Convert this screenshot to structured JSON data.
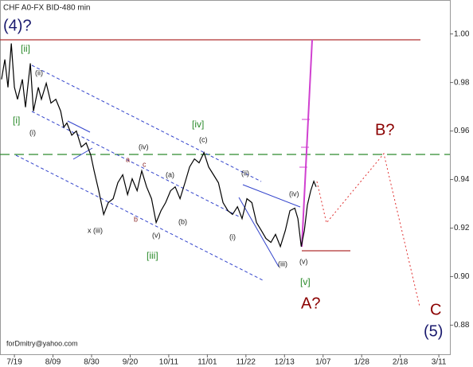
{
  "chart_data": {
    "type": "line",
    "title": "CHF A0-FX BID-480 min",
    "footer": "forDmitry@yahoo.com",
    "annotations": [
      "(4)?",
      "[ii]",
      "(ii)",
      "[i]",
      "(i)",
      "(iv)",
      "a",
      "c",
      "(a)",
      "b",
      "x (iii)",
      "(v)",
      "(b)",
      "[iii]",
      "[iv]",
      "(c)",
      "(ii)",
      "(iv)",
      "(i)",
      "(iii)",
      "(v)",
      "[v]",
      "A?",
      "B?",
      "C",
      "(5)"
    ],
    "x": [
      -5.0,
      -3.7,
      -2.5,
      -1.2,
      0,
      1.2,
      3.1,
      4.3,
      6.2,
      7.4,
      9.3,
      10.5,
      12.4,
      14.2,
      16.1,
      18.0,
      19.2,
      20.4,
      22.3,
      24.1,
      26.0,
      27.9,
      29.7,
      31.0,
      32.8,
      34.7,
      36.5,
      38.4,
      40.2,
      42.1,
      44.0,
      45.8,
      47.7,
      49.5,
      51.4,
      53.3,
      55.1,
      57.0,
      58.8,
      60.7,
      62.5,
      64.4,
      66.3,
      68.1,
      70.0,
      71.8,
      73.7,
      75.5,
      77.4,
      79.3,
      81.1,
      83.0,
      84.8,
      86.7,
      88.5,
      90.4,
      92.3,
      94.1,
      96.0,
      97.8,
      99.7,
      101.5,
      103.4,
      105.3,
      107.1,
      109.0,
      110.2,
      111.5,
      112.7,
      113.9,
      115.2,
      116.4,
      117.3
    ],
    "series": [
      {
        "name": "CHF A0-FX",
        "color": "#000000",
        "values": [
          0.9813,
          0.9895,
          0.978,
          0.9961,
          0.978,
          0.9731,
          0.9813,
          0.9698,
          0.9879,
          0.9682,
          0.978,
          0.9731,
          0.9797,
          0.9715,
          0.9731,
          0.9682,
          0.9616,
          0.9633,
          0.9583,
          0.96,
          0.9534,
          0.9551,
          0.9501,
          0.9436,
          0.9354,
          0.9256,
          0.9305,
          0.9321,
          0.9387,
          0.942,
          0.9338,
          0.9403,
          0.9354,
          0.9436,
          0.937,
          0.9321,
          0.9223,
          0.9272,
          0.9305,
          0.9354,
          0.937,
          0.9321,
          0.9387,
          0.9452,
          0.9485,
          0.9469,
          0.9511,
          0.9452,
          0.942,
          0.9387,
          0.9305,
          0.9272,
          0.9256,
          0.9288,
          0.9239,
          0.9321,
          0.9305,
          0.9223,
          0.919,
          0.9157,
          0.9141,
          0.9174,
          0.9124,
          0.919,
          0.9272,
          0.9282,
          0.9239,
          0.9124,
          0.919,
          0.9295,
          0.9354,
          0.9393,
          0.937
        ]
      }
    ],
    "xlim": [
      -5.6,
      169.3
    ],
    "xticks": [
      {
        "value": 0,
        "label": "7/19"
      },
      {
        "value": 15,
        "label": "8/09"
      },
      {
        "value": 30,
        "label": "8/30"
      },
      {
        "value": 45,
        "label": "9/20"
      },
      {
        "value": 60,
        "label": "10/11"
      },
      {
        "value": 75,
        "label": "11/01"
      },
      {
        "value": 90,
        "label": "11/22"
      },
      {
        "value": 105,
        "label": "12/13"
      },
      {
        "value": 120,
        "label": "1/07"
      },
      {
        "value": 135,
        "label": "1/28"
      },
      {
        "value": 150,
        "label": "2/18"
      },
      {
        "value": 165,
        "label": "3/11"
      }
    ],
    "ylim": [
      0.868,
      1.014
    ],
    "yticks": [
      {
        "value": 0.88,
        "label": "0.88"
      },
      {
        "value": 0.9,
        "label": "0.90"
      },
      {
        "value": 0.92,
        "label": "0.92"
      },
      {
        "value": 0.94,
        "label": "0.94"
      },
      {
        "value": 0.96,
        "label": "0.96"
      },
      {
        "value": 0.98,
        "label": "0.98"
      },
      {
        "value": 1.0,
        "label": "1.00"
      }
    ]
  }
}
